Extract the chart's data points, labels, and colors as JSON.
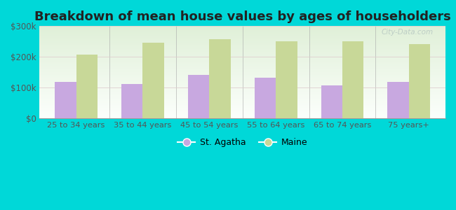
{
  "title": "Breakdown of mean house values by ages of householders",
  "categories": [
    "25 to 34 years",
    "35 to 44 years",
    "45 to 54 years",
    "55 to 64 years",
    "65 to 74 years",
    "75 years+"
  ],
  "st_agatha": [
    118000,
    112000,
    141000,
    131000,
    108000,
    118000
  ],
  "maine": [
    208000,
    247000,
    257000,
    250000,
    251000,
    242000
  ],
  "st_agatha_color": "#c8a8e0",
  "maine_color": "#c8d898",
  "background_outer": "#00d8d8",
  "background_inner_start": "#e8f5e0",
  "background_inner_end": "#fafff8",
  "ylim": [
    0,
    300000
  ],
  "yticks": [
    0,
    100000,
    200000,
    300000
  ],
  "ytick_labels": [
    "$0",
    "$100k",
    "$200k",
    "$300k"
  ],
  "title_fontsize": 13,
  "legend_labels": [
    "St. Agatha",
    "Maine"
  ],
  "bar_width": 0.32,
  "watermark": "City-Data.com"
}
